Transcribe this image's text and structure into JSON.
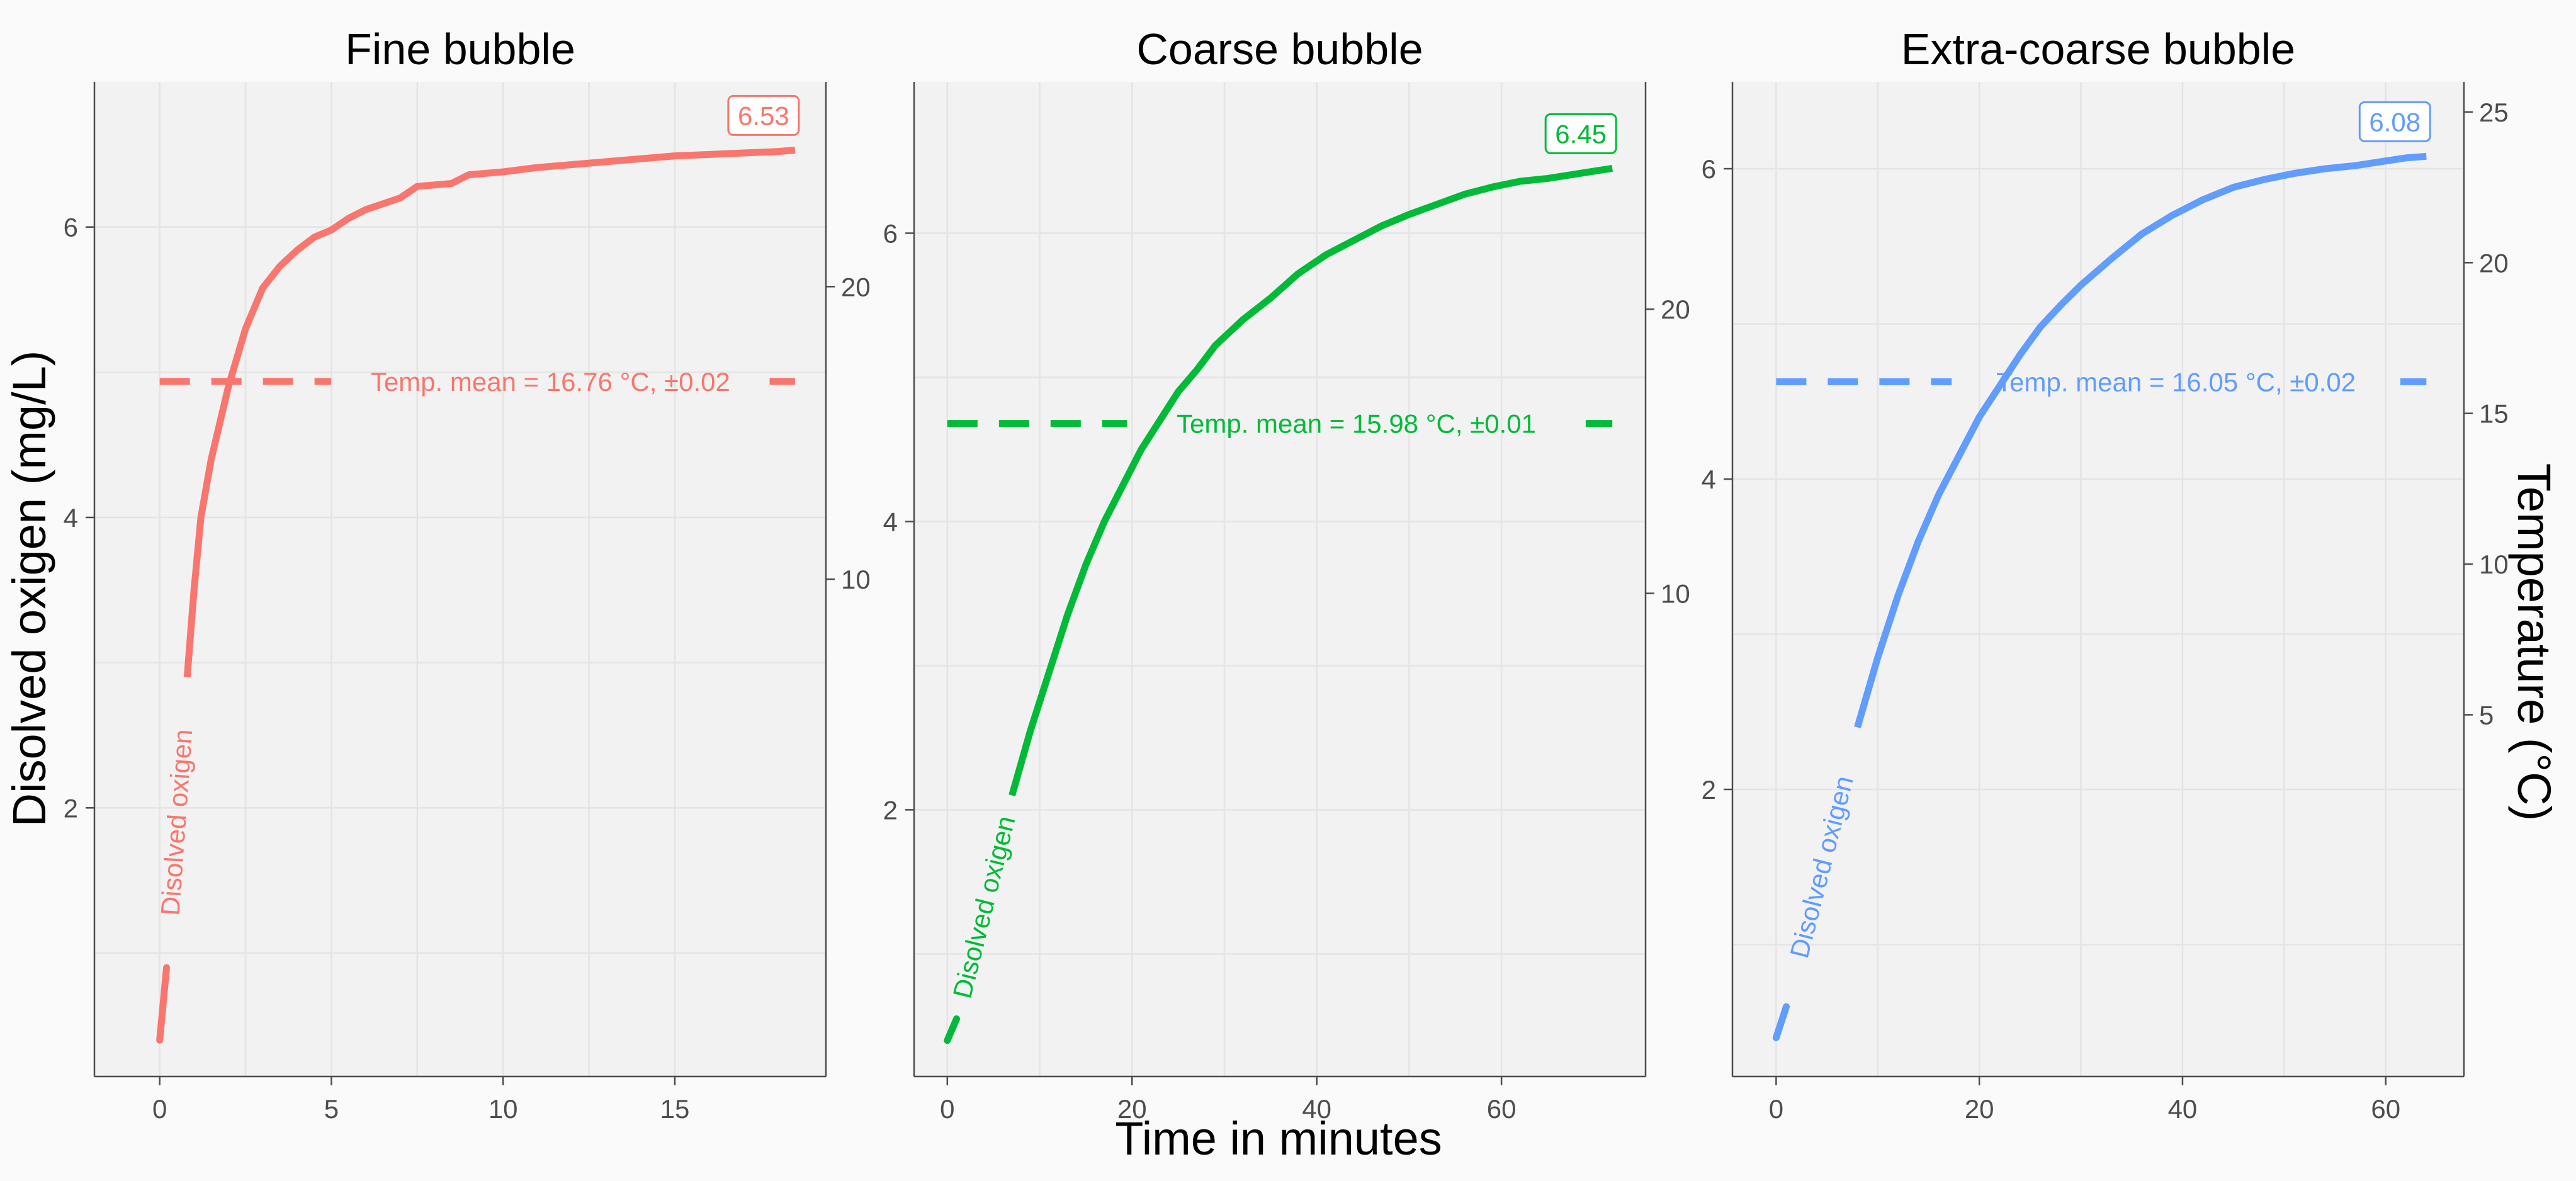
{
  "figure": {
    "y_axis_label": "Disolved oxigen (mg/L)",
    "x_axis_label": "Time in minutes",
    "y2_axis_label": "Temperature (°C)",
    "curve_label": "Disolved oxigen"
  },
  "chart_data": [
    {
      "type": "line",
      "title": "Fine bubble",
      "color": "#F8766D",
      "xlim": [
        -1.9,
        19.4
      ],
      "ylim": [
        0.15,
        7.0
      ],
      "y2lim": [
        -7.0,
        27.0
      ],
      "x_ticks": [
        0,
        5,
        10,
        15
      ],
      "y_ticks": [
        2,
        4,
        6
      ],
      "y2_ticks": [
        10,
        20
      ],
      "show_y_axis": true,
      "show_y2_axis": true,
      "end_label": "6.53",
      "temp_label": "Temp. mean = 16.76 °C, ±0.02",
      "temperature_mean": 16.76,
      "series": [
        {
          "name": "Disolved oxigen",
          "x": [
            0,
            0.2,
            0.4,
            0.6,
            0.8,
            1.0,
            1.2,
            1.5,
            2.0,
            2.5,
            3.0,
            3.5,
            4.0,
            4.5,
            5.0,
            5.5,
            6.0,
            7.0,
            7.5,
            8.5,
            9.0,
            10.0,
            11.0,
            12.0,
            13.0,
            14.0,
            15.0,
            16.0,
            17.0,
            18.0,
            18.5
          ],
          "y": [
            0.4,
            0.9,
            1.5,
            2.2,
            2.9,
            3.5,
            4.0,
            4.4,
            4.9,
            5.3,
            5.58,
            5.73,
            5.84,
            5.93,
            5.98,
            6.06,
            6.12,
            6.2,
            6.28,
            6.3,
            6.36,
            6.38,
            6.41,
            6.43,
            6.45,
            6.47,
            6.49,
            6.5,
            6.51,
            6.52,
            6.53
          ]
        }
      ]
    },
    {
      "type": "line",
      "title": "Coarse bubble",
      "color": "#00BA38",
      "xlim": [
        -3.6,
        75.6
      ],
      "ylim": [
        0.15,
        7.05
      ],
      "y2lim": [
        -7.0,
        28.0
      ],
      "x_ticks": [
        0,
        20,
        40,
        60
      ],
      "y_ticks": [
        2,
        4,
        6
      ],
      "y2_ticks": [
        10,
        20
      ],
      "show_y_axis": false,
      "show_y2_axis": true,
      "end_label": "6.45",
      "temp_label": "Temp. mean = 15.98 °C, ±0.01",
      "temperature_mean": 15.98,
      "series": [
        {
          "name": "Disolved oxigen",
          "x": [
            0,
            1,
            2,
            3,
            5,
            7,
            9,
            11,
            13,
            15,
            17,
            19,
            21,
            23,
            25,
            27,
            29,
            32,
            35,
            38,
            41,
            44,
            47,
            50,
            53,
            56,
            59,
            62,
            65,
            68,
            70,
            72
          ],
          "y": [
            0.4,
            0.55,
            0.8,
            1.1,
            1.6,
            2.1,
            2.55,
            2.95,
            3.35,
            3.7,
            4.0,
            4.25,
            4.5,
            4.7,
            4.9,
            5.05,
            5.22,
            5.4,
            5.55,
            5.72,
            5.85,
            5.95,
            6.05,
            6.13,
            6.2,
            6.27,
            6.32,
            6.36,
            6.38,
            6.41,
            6.43,
            6.45
          ]
        }
      ]
    },
    {
      "type": "line",
      "title": "Extra-coarse bubble",
      "color": "#619CFF",
      "xlim": [
        -4.3,
        67.7
      ],
      "ylim": [
        0.15,
        6.56
      ],
      "y2lim": [
        -7.0,
        26.0
      ],
      "x_ticks": [
        0,
        20,
        40,
        60
      ],
      "y_ticks": [
        2,
        4,
        6
      ],
      "y2_ticks": [
        5,
        10,
        15,
        20,
        25
      ],
      "show_y_axis": false,
      "show_y2_axis": true,
      "end_label": "6.08",
      "temp_label": "Temp. mean = 16.05 °C, ±0.02",
      "temperature_mean": 16.05,
      "series": [
        {
          "name": "Disolved oxigen",
          "x": [
            0,
            1,
            2,
            4,
            6,
            8,
            10,
            12,
            14,
            16,
            18,
            20,
            22,
            24,
            26,
            28,
            30,
            33,
            36,
            39,
            42,
            45,
            48,
            51,
            54,
            57,
            60,
            62,
            64
          ],
          "y": [
            0.4,
            0.6,
            0.9,
            1.4,
            1.9,
            2.4,
            2.85,
            3.25,
            3.6,
            3.9,
            4.15,
            4.4,
            4.6,
            4.8,
            4.98,
            5.12,
            5.25,
            5.42,
            5.58,
            5.7,
            5.8,
            5.88,
            5.93,
            5.97,
            6.0,
            6.02,
            6.05,
            6.07,
            6.08
          ]
        }
      ]
    }
  ]
}
